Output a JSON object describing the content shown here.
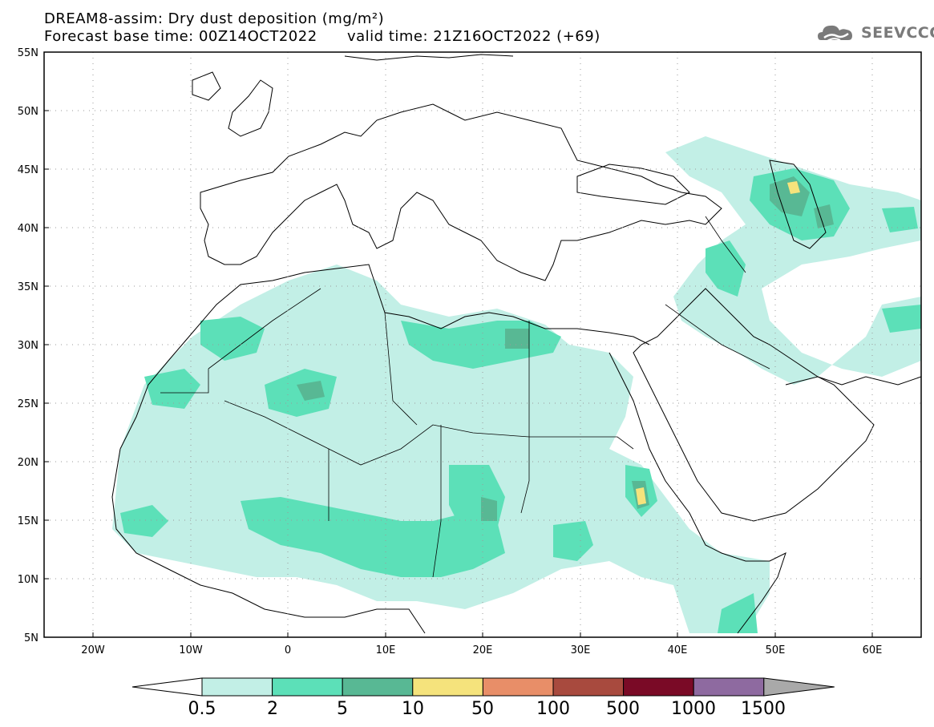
{
  "header": {
    "line1": "DREAM8-assim: Dry dust deposition (mg/m²)",
    "line2_left": "Forecast base time: 00Z14OCT2022",
    "line2_right": "valid time: 21Z16OCT2022 (+69)"
  },
  "logo": {
    "text": "SEEVCCC",
    "icon": "cloud-logo-icon",
    "color": "#7a7a7a"
  },
  "map": {
    "lat_labels": [
      "55N",
      "50N",
      "45N",
      "40N",
      "35N",
      "30N",
      "25N",
      "20N",
      "15N",
      "10N",
      "5N"
    ],
    "lon_labels": [
      "20W",
      "10W",
      "0",
      "10E",
      "20E",
      "30E",
      "40E",
      "50E",
      "60E"
    ],
    "lon_range": [
      -25,
      65
    ],
    "lat_range": [
      5,
      55
    ],
    "grid": "dotted",
    "coastline_color": "#000000"
  },
  "colorbar": {
    "labels": [
      "0.5",
      "2",
      "5",
      "10",
      "50",
      "100",
      "500",
      "1000",
      "1500"
    ],
    "colors": [
      "#c2efe6",
      "#5ce0b8",
      "#58b894",
      "#f5e37c",
      "#e88e68",
      "#a84a3e",
      "#7a0a26",
      "#8e6aa0",
      "#a9a9a9"
    ],
    "under_color": "#ffffff",
    "over_color": "#a9a9a9"
  }
}
